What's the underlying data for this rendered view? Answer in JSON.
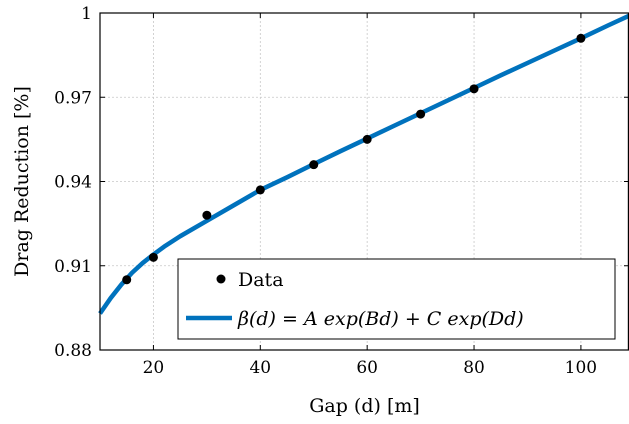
{
  "chart_data": {
    "type": "scatter",
    "xlabel": "Gap (d) [m]",
    "ylabel": "Drag Reduction [%]",
    "xlim": [
      10,
      109
    ],
    "ylim": [
      0.88,
      1.0
    ],
    "xticks": [
      20,
      40,
      60,
      80,
      100
    ],
    "yticks": [
      0.88,
      0.91,
      0.94,
      0.97,
      1.0
    ],
    "xtick_labels": [
      "20",
      "40",
      "60",
      "80",
      "100"
    ],
    "ytick_labels": [
      "0.88",
      "0.91",
      "0.94",
      "0.97",
      "1"
    ],
    "grid": true,
    "legend_position": "bottom-right",
    "series": [
      {
        "name": "Data",
        "kind": "markers",
        "color": "#000000",
        "x": [
          15,
          20,
          30,
          40,
          50,
          60,
          70,
          80,
          100
        ],
        "y": [
          0.905,
          0.913,
          0.928,
          0.937,
          0.946,
          0.955,
          0.964,
          0.973,
          0.991
        ]
      },
      {
        "name": "β(d) = A exp(Bd) + C exp(Dd)",
        "kind": "line",
        "color": "#0072BD",
        "x": [
          10,
          12,
          14,
          16,
          18,
          20,
          22,
          25,
          30,
          35,
          40,
          45,
          50,
          55,
          60,
          65,
          70,
          75,
          80,
          85,
          90,
          95,
          100,
          105,
          109
        ],
        "y": [
          0.893,
          0.8985,
          0.9033,
          0.9075,
          0.911,
          0.914,
          0.9168,
          0.9205,
          0.926,
          0.9315,
          0.937,
          0.9415,
          0.9462,
          0.9508,
          0.9553,
          0.9598,
          0.9643,
          0.9688,
          0.9733,
          0.9778,
          0.9822,
          0.9866,
          0.991,
          0.9955,
          0.999
        ]
      }
    ]
  }
}
